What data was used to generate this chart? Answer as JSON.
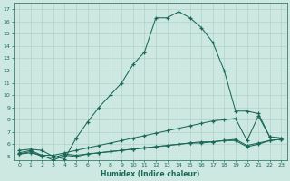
{
  "title": "",
  "xlabel": "Humidex (Indice chaleur)",
  "ylabel": "",
  "bg_color": "#cce8e0",
  "grid_color": "#aaccc4",
  "line_color": "#1a6858",
  "xlim": [
    -0.5,
    23.5
  ],
  "ylim": [
    4.7,
    17.5
  ],
  "xticks": [
    0,
    1,
    2,
    3,
    4,
    5,
    6,
    7,
    8,
    9,
    10,
    11,
    12,
    13,
    14,
    15,
    16,
    17,
    18,
    19,
    20,
    21,
    22,
    23
  ],
  "yticks": [
    5,
    6,
    7,
    8,
    9,
    10,
    11,
    12,
    13,
    14,
    15,
    16,
    17
  ],
  "line1_x": [
    0,
    1,
    2,
    3,
    4,
    5,
    6,
    7,
    8,
    9,
    10,
    11,
    12,
    13,
    14,
    15,
    16,
    17,
    18,
    19,
    20,
    21,
    22,
    23
  ],
  "line1_y": [
    5.5,
    5.6,
    5.5,
    5.0,
    4.8,
    6.5,
    7.8,
    9.0,
    10.0,
    11.0,
    12.5,
    13.5,
    16.3,
    16.3,
    16.8,
    16.3,
    15.5,
    14.3,
    12.0,
    8.7,
    8.7,
    8.5,
    6.6,
    6.5
  ],
  "line2_x": [
    0,
    1,
    2,
    3,
    4,
    5,
    6,
    7,
    8,
    9,
    10,
    11,
    12,
    13,
    14,
    15,
    16,
    17,
    18,
    19,
    20,
    21,
    22,
    23
  ],
  "line2_y": [
    5.3,
    5.5,
    5.1,
    5.1,
    5.3,
    5.5,
    5.7,
    5.9,
    6.1,
    6.3,
    6.5,
    6.7,
    6.9,
    7.1,
    7.3,
    7.5,
    7.7,
    7.9,
    8.0,
    8.1,
    6.3,
    8.3,
    6.6,
    6.5
  ],
  "line3_x": [
    0,
    1,
    2,
    3,
    4,
    5,
    6,
    7,
    8,
    9,
    10,
    11,
    12,
    13,
    14,
    15,
    16,
    17,
    18,
    19,
    20,
    21,
    22,
    23
  ],
  "line3_y": [
    5.2,
    5.3,
    5.1,
    4.7,
    5.1,
    5.0,
    5.2,
    5.3,
    5.4,
    5.5,
    5.6,
    5.7,
    5.8,
    5.9,
    6.0,
    6.1,
    6.1,
    6.2,
    6.3,
    6.3,
    5.8,
    6.0,
    6.3,
    6.4
  ],
  "line4_x": [
    0,
    1,
    2,
    3,
    4,
    5,
    6,
    7,
    8,
    9,
    10,
    11,
    12,
    13,
    14,
    15,
    16,
    17,
    18,
    19,
    20,
    21,
    22,
    23
  ],
  "line4_y": [
    5.2,
    5.4,
    5.0,
    4.9,
    5.2,
    5.1,
    5.2,
    5.3,
    5.4,
    5.5,
    5.6,
    5.7,
    5.8,
    5.9,
    6.0,
    6.1,
    6.2,
    6.2,
    6.3,
    6.4,
    5.9,
    6.1,
    6.3,
    6.4
  ]
}
